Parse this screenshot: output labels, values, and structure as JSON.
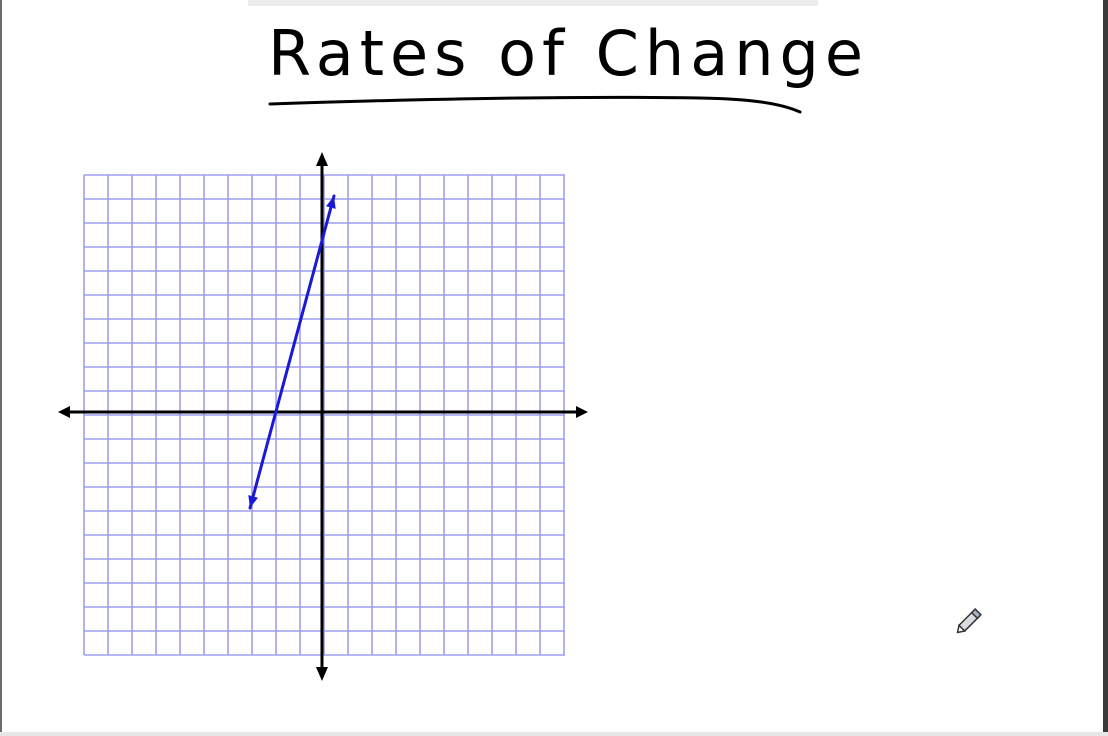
{
  "board": {
    "title": "Rates of Change",
    "title_underline": true
  },
  "graph": {
    "grid_on": true,
    "grid_color": "#9e9ef2",
    "axis_color": "#000000",
    "line_color": "#1a1ad6",
    "x_range": [
      -10,
      10
    ],
    "y_range": [
      -10,
      10
    ],
    "axis_arrows": true,
    "line": {
      "from": [
        -3,
        -4
      ],
      "to": [
        0.5,
        9
      ],
      "arrow_both_ends": true
    }
  },
  "cursor": {
    "icon": "pencil-icon"
  }
}
